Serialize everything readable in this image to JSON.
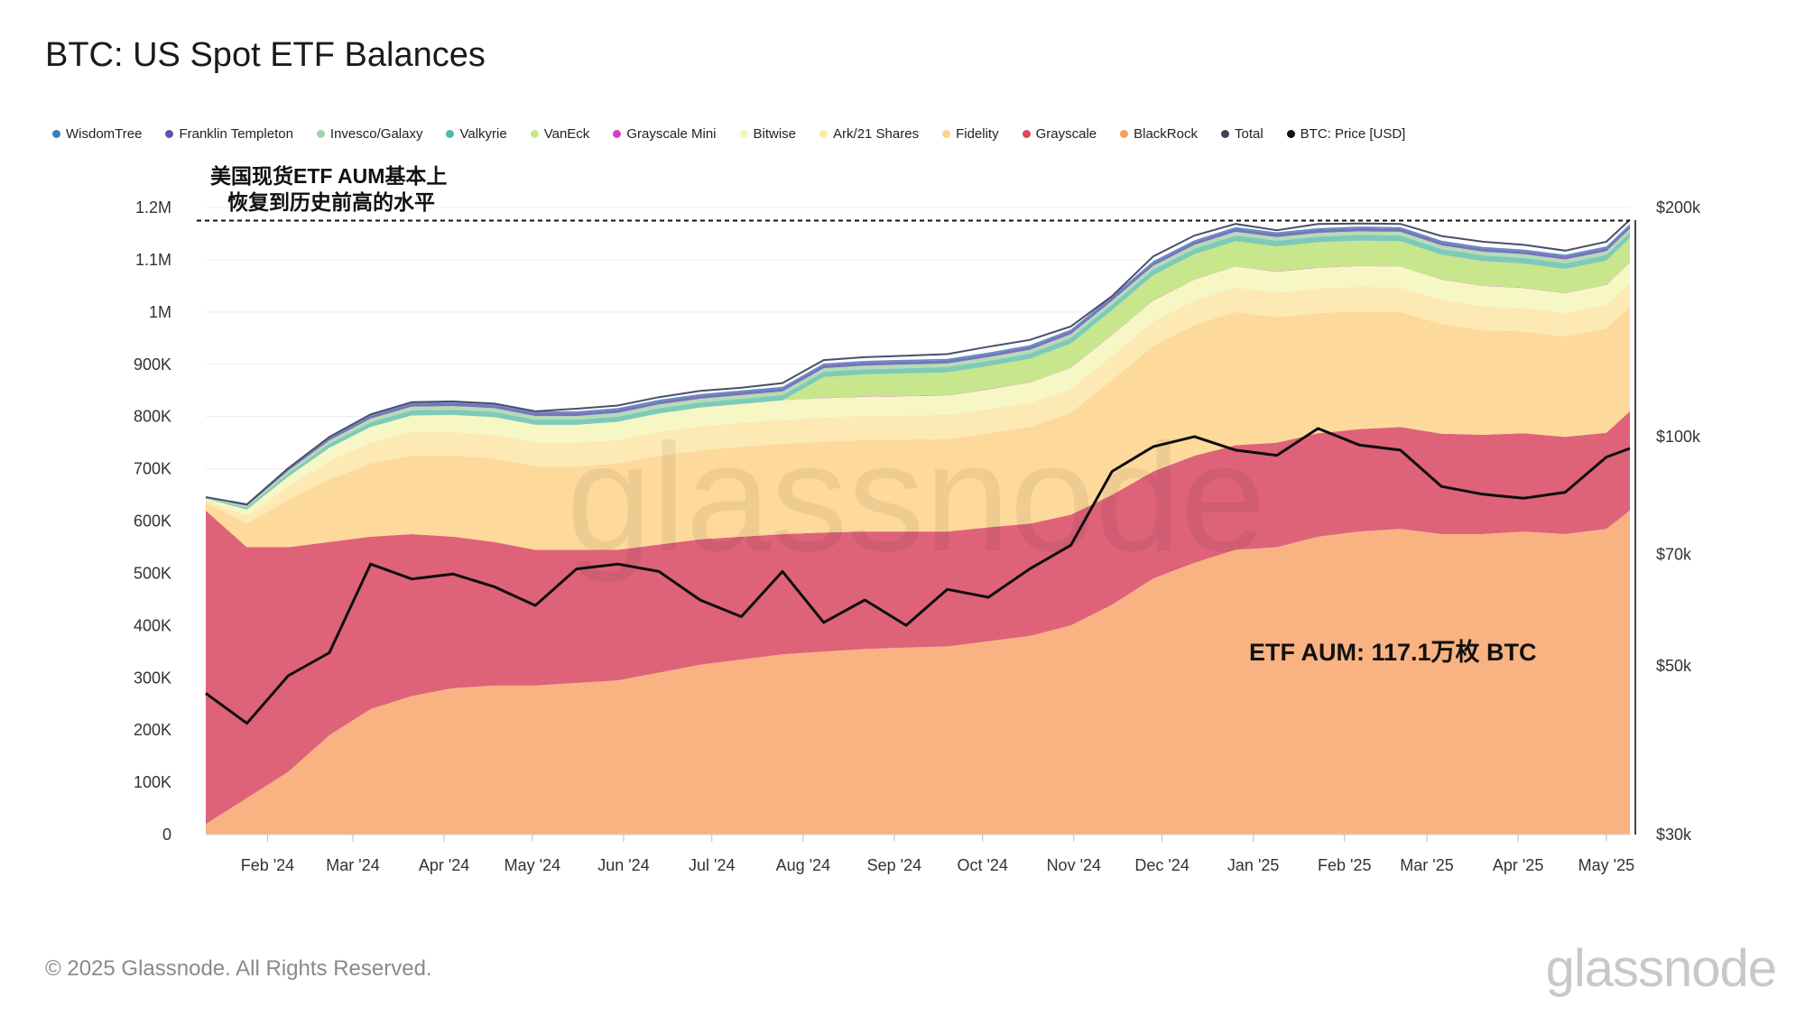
{
  "title": "BTC: US Spot ETF Balances",
  "footer": "© 2025 Glassnode. All Rights Reserved.",
  "brand": "glassnode",
  "legend": [
    {
      "label": "WisdomTree",
      "color": "#3f7fb8"
    },
    {
      "label": "Franklin Templeton",
      "color": "#5e55a8"
    },
    {
      "label": "Invesco/Galaxy",
      "color": "#9fd4a4"
    },
    {
      "label": "Valkyrie",
      "color": "#50b8a8"
    },
    {
      "label": "VanEck",
      "color": "#c6e88a"
    },
    {
      "label": "Grayscale Mini",
      "color": "#d63fc0"
    },
    {
      "label": "Bitwise",
      "color": "#f4f6b8"
    },
    {
      "label": "Ark/21 Shares",
      "color": "#fbeaa6"
    },
    {
      "label": "Fidelity",
      "color": "#fbd48e"
    },
    {
      "label": "Grayscale",
      "color": "#d8485f"
    },
    {
      "label": "BlackRock",
      "color": "#f49e5c"
    },
    {
      "label": "Total",
      "color": "#3c4458"
    },
    {
      "label": "BTC: Price [USD]",
      "color": "#111111"
    }
  ],
  "annotations": {
    "ath_line1": "美国现货ETF AUM基本上",
    "ath_line2": "恢复到历史前高的水平",
    "aum_label": "ETF AUM: 117.1万枚 BTC"
  },
  "chart_data": {
    "type": "area",
    "title": "BTC: US Spot ETF Balances",
    "x": [
      "2024-01-11",
      "2024-01-25",
      "2024-02-08",
      "2024-02-22",
      "2024-03-07",
      "2024-03-21",
      "2024-04-04",
      "2024-04-18",
      "2024-05-02",
      "2024-05-16",
      "2024-05-30",
      "2024-06-13",
      "2024-06-27",
      "2024-07-11",
      "2024-07-25",
      "2024-08-08",
      "2024-08-22",
      "2024-09-05",
      "2024-09-19",
      "2024-10-03",
      "2024-10-17",
      "2024-10-31",
      "2024-11-14",
      "2024-11-28",
      "2024-12-12",
      "2024-12-26",
      "2025-01-09",
      "2025-01-23",
      "2025-02-06",
      "2025-02-20",
      "2025-03-06",
      "2025-03-20",
      "2025-04-03",
      "2025-04-17",
      "2025-05-01",
      "2025-05-09"
    ],
    "x_tick_labels": [
      "Feb '24",
      "Mar '24",
      "Apr '24",
      "May '24",
      "Jun '24",
      "Jul '24",
      "Aug '24",
      "Sep '24",
      "Oct '24",
      "Nov '24",
      "Dec '24",
      "Jan '25",
      "Feb '25",
      "Mar '25",
      "Apr '25",
      "May '25"
    ],
    "x_tick_dates": [
      "2024-02-01",
      "2024-03-01",
      "2024-04-01",
      "2024-05-01",
      "2024-06-01",
      "2024-07-01",
      "2024-08-01",
      "2024-09-01",
      "2024-10-01",
      "2024-11-01",
      "2024-12-01",
      "2025-01-01",
      "2025-02-01",
      "2025-03-01",
      "2025-04-01",
      "2025-05-01"
    ],
    "y_left_ticks": [
      "0",
      "100K",
      "200K",
      "300K",
      "400K",
      "500K",
      "600K",
      "700K",
      "800K",
      "900K",
      "1M",
      "1.1M",
      "1.2M"
    ],
    "y_left_range": [
      0,
      1200000
    ],
    "y_right_ticks": [
      "$30k",
      "$50k",
      "$70k",
      "$100k",
      "$200k"
    ],
    "y_right_values": [
      30000,
      50000,
      70000,
      100000,
      200000
    ],
    "y_right_range": [
      30000,
      200000
    ],
    "y_right_scale": "log",
    "ath_level": 1175000,
    "series": [
      {
        "name": "BlackRock",
        "color": "#f9b383",
        "values": [
          20000,
          70000,
          120000,
          190000,
          240000,
          265000,
          280000,
          285000,
          285000,
          290000,
          295000,
          310000,
          325000,
          335000,
          345000,
          350000,
          355000,
          358000,
          360000,
          370000,
          380000,
          400000,
          440000,
          490000,
          520000,
          545000,
          550000,
          570000,
          580000,
          585000,
          575000,
          575000,
          580000,
          575000,
          585000,
          620000
        ]
      },
      {
        "name": "Grayscale",
        "color": "#de6379",
        "values": [
          600000,
          480000,
          430000,
          370000,
          330000,
          310000,
          290000,
          275000,
          260000,
          255000,
          250000,
          245000,
          240000,
          235000,
          230000,
          228000,
          225000,
          222000,
          220000,
          218000,
          215000,
          212000,
          210000,
          205000,
          205000,
          200000,
          200000,
          198000,
          196000,
          195000,
          192000,
          190000,
          188000,
          186000,
          184000,
          190000
        ]
      },
      {
        "name": "Fidelity",
        "color": "#fdd99b",
        "values": [
          15000,
          45000,
          90000,
          120000,
          140000,
          150000,
          155000,
          160000,
          160000,
          160000,
          165000,
          170000,
          170000,
          172000,
          173000,
          174000,
          175000,
          176000,
          177000,
          180000,
          185000,
          195000,
          220000,
          240000,
          250000,
          255000,
          240000,
          230000,
          225000,
          220000,
          210000,
          200000,
          195000,
          192000,
          200000,
          200000
        ]
      },
      {
        "name": "Ark/21 Shares",
        "color": "#fde9b3",
        "values": [
          5000,
          15000,
          25000,
          35000,
          40000,
          45000,
          45000,
          45000,
          45000,
          45000,
          45000,
          46000,
          46000,
          46000,
          46000,
          46000,
          46000,
          46000,
          46000,
          46000,
          46000,
          46000,
          46000,
          47000,
          47000,
          47000,
          47000,
          47000,
          47000,
          47000,
          46000,
          46000,
          45000,
          45000,
          45000,
          46000
        ]
      },
      {
        "name": "Bitwise",
        "color": "#f6f7c4",
        "values": [
          3000,
          12000,
          20000,
          25000,
          30000,
          32000,
          33000,
          34000,
          34000,
          34000,
          35000,
          35000,
          36000,
          36000,
          37000,
          37000,
          37000,
          37000,
          37000,
          38000,
          39000,
          40000,
          40000,
          40000,
          40000,
          40000,
          40000,
          40000,
          40000,
          40000,
          39000,
          39000,
          38000,
          38000,
          38000,
          39000
        ]
      },
      {
        "name": "Grayscale Mini",
        "color": "#d63fc0",
        "values": [
          0,
          0,
          0,
          0,
          0,
          0,
          0,
          0,
          0,
          0,
          0,
          0,
          0,
          0,
          0,
          500,
          500,
          500,
          500,
          500,
          500,
          500,
          500,
          500,
          500,
          500,
          500,
          500,
          500,
          500,
          500,
          500,
          500,
          500,
          500,
          500
        ]
      },
      {
        "name": "VanEck",
        "color": "#c8e68c",
        "values": [
          0,
          0,
          0,
          0,
          0,
          0,
          0,
          0,
          0,
          0,
          0,
          0,
          0,
          0,
          0,
          40000,
          42000,
          43000,
          44000,
          44000,
          45000,
          46000,
          47000,
          48000,
          48000,
          48000,
          48000,
          48000,
          48000,
          48000,
          47000,
          47000,
          46000,
          46000,
          46000,
          46000
        ]
      },
      {
        "name": "Valkyrie",
        "color": "#7ecab8",
        "values": [
          1000,
          4000,
          6000,
          8000,
          9000,
          10000,
          10000,
          10000,
          10000,
          10000,
          10000,
          10000,
          10000,
          10000,
          10000,
          10000,
          10000,
          10000,
          10000,
          10000,
          10000,
          11000,
          11000,
          11000,
          11000,
          11000,
          11000,
          11000,
          11000,
          11000,
          11000,
          11000,
          11000,
          11000,
          11000,
          11000
        ]
      },
      {
        "name": "Invesco/Galaxy",
        "color": "#b4dcb4",
        "values": [
          1000,
          3000,
          5000,
          6000,
          7000,
          7000,
          7000,
          7000,
          7000,
          7000,
          7000,
          7000,
          7000,
          7000,
          7000,
          7000,
          7000,
          7000,
          7000,
          7000,
          7000,
          7000,
          7000,
          7000,
          7000,
          7000,
          7000,
          7000,
          7000,
          7000,
          7000,
          7000,
          7000,
          7000,
          7000,
          7000
        ]
      },
      {
        "name": "Franklin Templeton",
        "color": "#7c72ba",
        "values": [
          500,
          2000,
          3000,
          4000,
          5000,
          5500,
          6000,
          6000,
          6000,
          6000,
          6000,
          6000,
          6000,
          6000,
          6000,
          6000,
          6000,
          6000,
          6000,
          6000,
          6000,
          6000,
          6000,
          6000,
          6000,
          6000,
          6000,
          6000,
          6000,
          6000,
          6000,
          6000,
          6000,
          6000,
          6000,
          6000
        ]
      },
      {
        "name": "WisdomTree",
        "color": "#5b8fc4",
        "values": [
          200,
          1000,
          2000,
          3000,
          3000,
          3000,
          3000,
          3000,
          3000,
          3000,
          3000,
          3000,
          3000,
          3000,
          3000,
          3000,
          3000,
          3000,
          3000,
          3000,
          3000,
          3000,
          3000,
          3000,
          3000,
          3000,
          3000,
          3000,
          3000,
          3000,
          3000,
          3000,
          3000,
          3000,
          3000,
          3000
        ]
      }
    ],
    "total": {
      "name": "Total",
      "values": [
        645700,
        632000,
        701000,
        761000,
        804000,
        827500,
        829000,
        825000,
        810000,
        815000,
        821000,
        837000,
        849000,
        855000,
        864000,
        908000,
        913500,
        916500,
        919500,
        933500,
        946500,
        972500,
        1030500,
        1106500,
        1146500,
        1168500,
        1156500,
        1168500,
        1169500,
        1168500,
        1145500,
        1134500,
        1128500,
        1117500,
        1134500,
        1176500
      ]
    },
    "btc_price": {
      "name": "BTC: Price [USD]",
      "scale": "log",
      "values": [
        46000,
        42000,
        48500,
        52000,
        68000,
        65000,
        66000,
        63500,
        60000,
        67000,
        68000,
        66500,
        61000,
        58000,
        66500,
        57000,
        61000,
        56500,
        63000,
        61500,
        67000,
        72000,
        90000,
        97000,
        100000,
        96000,
        94500,
        102500,
        97500,
        96000,
        86000,
        84000,
        83000,
        84500,
        94000,
        96500
      ]
    }
  }
}
